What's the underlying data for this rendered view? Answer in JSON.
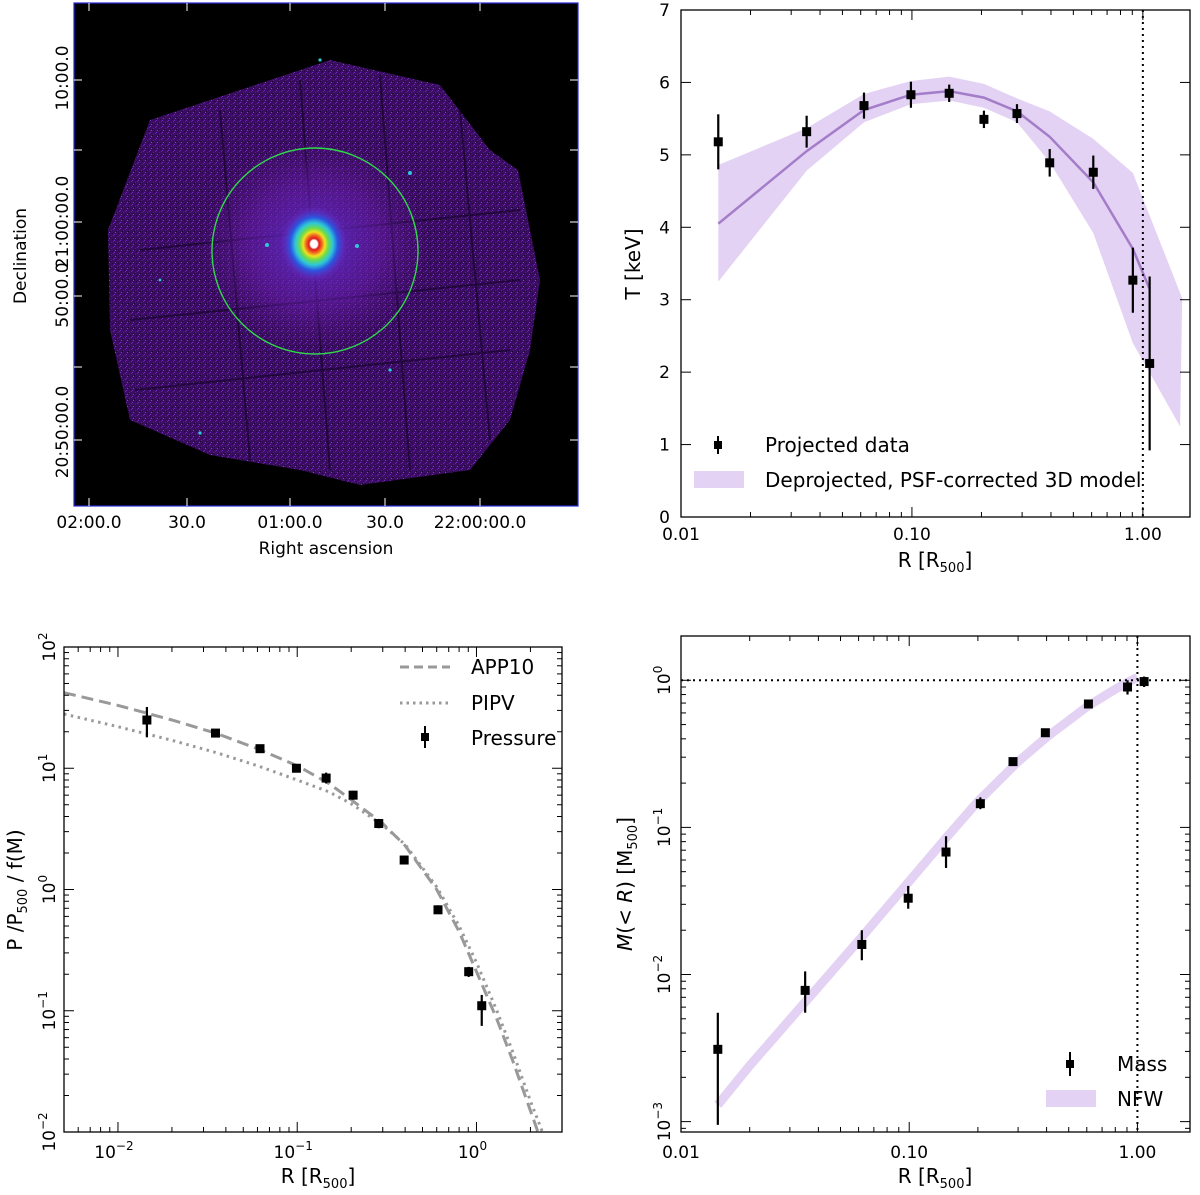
{
  "chart_data": [
    {
      "type": "image",
      "id": "xray_map",
      "xlabel": "Right ascension",
      "ylabel": "Declination",
      "x_tick_labels": [
        "02:00.0",
        "30.0",
        "01:00.0",
        "30.0",
        "22:00:00.0"
      ],
      "y_tick_labels": [
        "10:00.0",
        "21:00:00.0",
        "50:00.0",
        "20:50:00.0"
      ],
      "colormap": [
        "#000000",
        "#3a0c5c",
        "#7a1fb8",
        "#2a55e0",
        "#2ec8d8",
        "#6cdc4a",
        "#f0e020",
        "#f07020",
        "#e01818",
        "#ffffff"
      ],
      "circle_color": "#2fd84a"
    },
    {
      "type": "line",
      "id": "temperature",
      "xlabel": "R [R",
      "xlabel_sub": "500",
      "xlabel_end": "]",
      "ylabel": "T [keV]",
      "xscale": "log",
      "xlim": [
        0.01,
        1.6
      ],
      "ylim": [
        0,
        7
      ],
      "x_ticks": [
        {
          "v": 0.01,
          "label": "0.01"
        },
        {
          "v": 0.1,
          "label": "0.10"
        },
        {
          "v": 1.0,
          "label": "1.00"
        }
      ],
      "y_ticks": [
        {
          "v": 0,
          "label": "0"
        },
        {
          "v": 1,
          "label": "1"
        },
        {
          "v": 2,
          "label": "2"
        },
        {
          "v": 3,
          "label": "3"
        },
        {
          "v": 4,
          "label": "4"
        },
        {
          "v": 5,
          "label": "5"
        },
        {
          "v": 6,
          "label": "6"
        },
        {
          "v": 7,
          "label": "7"
        }
      ],
      "vline": 1.0,
      "points": [
        {
          "x": 0.0145,
          "y": 5.18,
          "err": 0.38
        },
        {
          "x": 0.035,
          "y": 5.32,
          "err": 0.22
        },
        {
          "x": 0.062,
          "y": 5.68,
          "err": 0.18
        },
        {
          "x": 0.099,
          "y": 5.83,
          "err": 0.18
        },
        {
          "x": 0.145,
          "y": 5.85,
          "err": 0.12
        },
        {
          "x": 0.205,
          "y": 5.49,
          "err": 0.12
        },
        {
          "x": 0.285,
          "y": 5.57,
          "err": 0.13
        },
        {
          "x": 0.395,
          "y": 4.89,
          "err": 0.19
        },
        {
          "x": 0.61,
          "y": 4.76,
          "err": 0.23
        },
        {
          "x": 0.905,
          "y": 3.27,
          "err": 0.45
        },
        {
          "x": 1.07,
          "y": 2.12,
          "err": 1.2
        }
      ],
      "model": {
        "x": [
          0.0145,
          0.035,
          0.062,
          0.099,
          0.145,
          0.205,
          0.285,
          0.395,
          0.61,
          0.905,
          1.07
        ],
        "y": [
          4.05,
          5.05,
          5.62,
          5.83,
          5.88,
          5.79,
          5.6,
          5.25,
          4.62,
          3.7,
          3.15
        ],
        "lower": [
          3.25,
          4.78,
          5.45,
          5.7,
          5.75,
          5.65,
          5.45,
          4.9,
          3.92,
          2.4,
          1.25
        ],
        "upper": [
          4.86,
          5.37,
          5.84,
          6.02,
          6.08,
          5.98,
          5.78,
          5.6,
          5.22,
          4.75,
          3.02
        ],
        "band_x_upper": [
          0.0145,
          0.035,
          0.062,
          0.099,
          0.145,
          0.205,
          0.285,
          0.395,
          0.61,
          0.905,
          1.48
        ],
        "band_x_lower": [
          0.0145,
          0.035,
          0.062,
          0.099,
          0.145,
          0.205,
          0.285,
          0.395,
          0.61,
          0.905,
          1.45
        ]
      },
      "legend": {
        "placement": "lower-left",
        "entries": [
          "Projected data",
          "Deprojected, PSF-corrected 3D model"
        ]
      }
    },
    {
      "type": "line",
      "id": "pressure",
      "xlabel": "R [R",
      "xlabel_sub": "500",
      "xlabel_end": "]",
      "ylabel_parts": [
        "P /P",
        "500",
        " / f(M)"
      ],
      "xscale": "log",
      "yscale": "log",
      "xlim": [
        0.005,
        3.0
      ],
      "ylim": [
        0.01,
        100
      ],
      "x_ticks": [
        {
          "v": 0.01,
          "base": "10",
          "exp": "−2"
        },
        {
          "v": 0.1,
          "base": "10",
          "exp": "−1"
        },
        {
          "v": 1,
          "base": "10",
          "exp": "0"
        }
      ],
      "y_ticks": [
        {
          "v": 0.01,
          "base": "10",
          "exp": "−2"
        },
        {
          "v": 0.1,
          "base": "10",
          "exp": "−1"
        },
        {
          "v": 1,
          "base": "10",
          "exp": "0"
        },
        {
          "v": 10,
          "base": "10",
          "exp": "1"
        },
        {
          "v": 100,
          "base": "10",
          "exp": "2"
        }
      ],
      "points": [
        {
          "x": 0.0145,
          "y": 25.0,
          "lo": 18.0,
          "hi": 32.0
        },
        {
          "x": 0.035,
          "y": 19.5,
          "lo": 18.0,
          "hi": 21.0
        },
        {
          "x": 0.062,
          "y": 14.5,
          "lo": 13.5,
          "hi": 15.5
        },
        {
          "x": 0.099,
          "y": 10.0,
          "lo": 9.3,
          "hi": 10.7
        },
        {
          "x": 0.145,
          "y": 8.3,
          "lo": 7.5,
          "hi": 9.2
        },
        {
          "x": 0.205,
          "y": 6.0,
          "lo": 5.5,
          "hi": 6.5
        },
        {
          "x": 0.285,
          "y": 3.5,
          "lo": 3.2,
          "hi": 3.8
        },
        {
          "x": 0.395,
          "y": 1.75,
          "lo": 1.62,
          "hi": 1.9
        },
        {
          "x": 0.61,
          "y": 0.68,
          "lo": 0.63,
          "hi": 0.74
        },
        {
          "x": 0.905,
          "y": 0.21,
          "lo": 0.19,
          "hi": 0.23
        },
        {
          "x": 1.07,
          "y": 0.11,
          "lo": 0.075,
          "hi": 0.135
        }
      ],
      "series": [
        {
          "name": "APP10",
          "style": "dashed",
          "x": [
            0.005,
            0.01,
            0.02,
            0.035,
            0.06,
            0.1,
            0.15,
            0.2,
            0.3,
            0.4,
            0.6,
            0.8,
            1.0,
            1.3,
            1.6,
            2.0,
            2.4
          ],
          "y": [
            42,
            33,
            25,
            19.5,
            14.5,
            10.5,
            7.5,
            5.5,
            3.5,
            2.3,
            1.0,
            0.45,
            0.21,
            0.085,
            0.038,
            0.015,
            0.007
          ]
        },
        {
          "name": "PIPV",
          "style": "dotted",
          "x": [
            0.005,
            0.01,
            0.02,
            0.035,
            0.06,
            0.1,
            0.15,
            0.2,
            0.3,
            0.4,
            0.6,
            0.8,
            1.0,
            1.3,
            1.6,
            2.0,
            2.4
          ],
          "y": [
            28,
            22,
            17,
            13.5,
            10.5,
            8.0,
            6.4,
            5.1,
            3.4,
            2.35,
            1.05,
            0.5,
            0.25,
            0.1,
            0.045,
            0.018,
            0.009
          ]
        }
      ],
      "legend": {
        "placement": "top-right",
        "entries": [
          "APP10",
          "PIPV",
          "Pressure"
        ]
      }
    },
    {
      "type": "line",
      "id": "mass",
      "xlabel": "R [R",
      "xlabel_sub": "500",
      "xlabel_end": "]",
      "ylabel_parts": [
        "M",
        "(< ",
        "R",
        ") [M",
        "500",
        "]"
      ],
      "xscale": "log",
      "yscale": "log",
      "xlim": [
        0.01,
        1.7
      ],
      "ylim": [
        0.00085,
        2.0
      ],
      "x_ticks": [
        {
          "v": 0.01,
          "label": "0.01"
        },
        {
          "v": 0.1,
          "label": "0.10"
        },
        {
          "v": 1.0,
          "label": "1.00"
        }
      ],
      "y_ticks": [
        {
          "v": 0.001,
          "base": "10",
          "exp": "−3"
        },
        {
          "v": 0.01,
          "base": "10",
          "exp": "−2"
        },
        {
          "v": 0.1,
          "base": "10",
          "exp": "−1"
        },
        {
          "v": 1,
          "base": "10",
          "exp": "0"
        }
      ],
      "vline": 1.0,
      "hline": 1.0,
      "points": [
        {
          "x": 0.0145,
          "y": 0.0031,
          "lo": 0.00095,
          "hi": 0.0055
        },
        {
          "x": 0.035,
          "y": 0.0078,
          "lo": 0.0055,
          "hi": 0.0105
        },
        {
          "x": 0.062,
          "y": 0.016,
          "lo": 0.0125,
          "hi": 0.02
        },
        {
          "x": 0.099,
          "y": 0.033,
          "lo": 0.028,
          "hi": 0.04
        },
        {
          "x": 0.145,
          "y": 0.068,
          "lo": 0.053,
          "hi": 0.087
        },
        {
          "x": 0.205,
          "y": 0.145,
          "lo": 0.133,
          "hi": 0.16
        },
        {
          "x": 0.285,
          "y": 0.28,
          "lo": 0.265,
          "hi": 0.295
        },
        {
          "x": 0.395,
          "y": 0.44,
          "lo": 0.42,
          "hi": 0.46
        },
        {
          "x": 0.61,
          "y": 0.69,
          "lo": 0.66,
          "hi": 0.72
        },
        {
          "x": 0.905,
          "y": 0.9,
          "lo": 0.8,
          "hi": 1.0
        },
        {
          "x": 1.07,
          "y": 0.98,
          "lo": 0.9,
          "hi": 1.06
        }
      ],
      "model": {
        "x": [
          0.0145,
          0.02,
          0.035,
          0.062,
          0.1,
          0.15,
          0.2,
          0.3,
          0.4,
          0.6,
          0.8,
          1.0
        ],
        "y": [
          0.0013,
          0.0024,
          0.0065,
          0.018,
          0.043,
          0.09,
          0.15,
          0.28,
          0.41,
          0.66,
          0.87,
          1.05
        ]
      },
      "legend": {
        "placement": "lower-right",
        "entries": [
          "Mass",
          "NFW"
        ]
      }
    }
  ]
}
